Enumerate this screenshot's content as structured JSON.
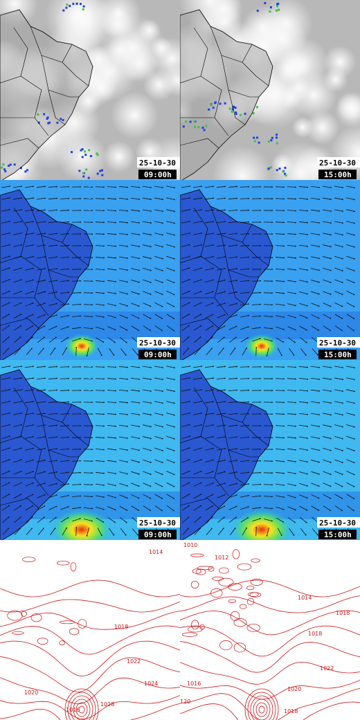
{
  "panels": [
    {
      "date": "25-10-30",
      "time": "09:00h"
    },
    {
      "date": "25-10-30",
      "time": "15:00h"
    },
    {
      "date": "25-10-30",
      "time": "09:00h"
    },
    {
      "date": "25-10-30",
      "time": "15:00h"
    },
    {
      "date": "25-10-30",
      "time": "09:00h"
    },
    {
      "date": "25-10-30",
      "time": "15:00h"
    }
  ],
  "isobars": [
    {
      "labels": [
        "1014",
        "1018",
        "1022",
        "1024",
        "1020",
        "1016",
        "1028"
      ]
    },
    {
      "labels": [
        "1010",
        "1012",
        "1014",
        "1018",
        "1018",
        "1022",
        "1016",
        "1020",
        "1018",
        "120"
      ]
    }
  ]
}
